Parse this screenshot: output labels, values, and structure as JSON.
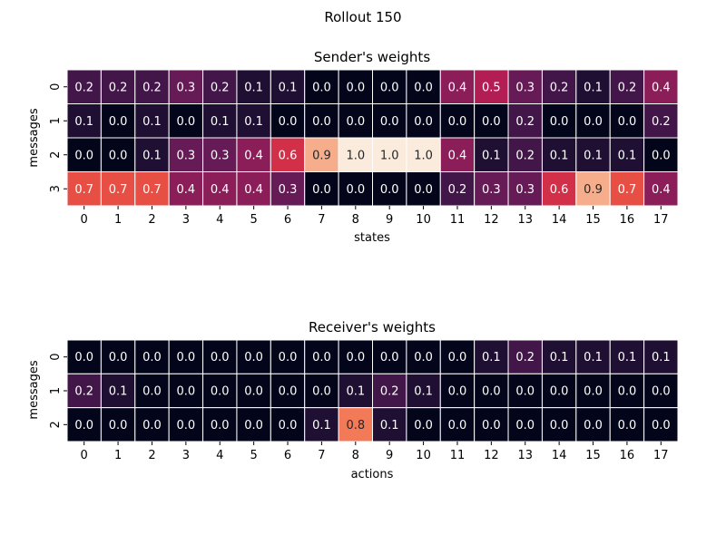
{
  "figure_title": "Rollout 150",
  "chart_data": [
    {
      "type": "heatmap",
      "title": "Sender's weights",
      "xlabel": "states",
      "ylabel": "messages",
      "x_categories": [
        "0",
        "1",
        "2",
        "3",
        "4",
        "5",
        "6",
        "7",
        "8",
        "9",
        "10",
        "11",
        "12",
        "13",
        "14",
        "15",
        "16",
        "17"
      ],
      "y_categories": [
        "0",
        "1",
        "2",
        "3"
      ],
      "value_range": [
        0,
        1
      ],
      "colormap": "rocket",
      "annotation_format": "0.0",
      "values": [
        [
          0.2,
          0.2,
          0.2,
          0.3,
          0.2,
          0.1,
          0.1,
          0.0,
          0.0,
          0.0,
          0.0,
          0.4,
          0.5,
          0.3,
          0.2,
          0.1,
          0.2,
          0.4
        ],
        [
          0.1,
          0.0,
          0.1,
          0.0,
          0.1,
          0.1,
          0.0,
          0.0,
          0.0,
          0.0,
          0.0,
          0.0,
          0.0,
          0.2,
          0.0,
          0.0,
          0.0,
          0.2
        ],
        [
          0.0,
          0.0,
          0.1,
          0.3,
          0.3,
          0.4,
          0.6,
          0.9,
          1.0,
          1.0,
          1.0,
          0.4,
          0.1,
          0.2,
          0.1,
          0.1,
          0.1,
          0.0
        ],
        [
          0.7,
          0.7,
          0.7,
          0.4,
          0.4,
          0.4,
          0.3,
          0.0,
          0.0,
          0.0,
          0.0,
          0.2,
          0.3,
          0.3,
          0.6,
          0.9,
          0.7,
          0.4
        ]
      ]
    },
    {
      "type": "heatmap",
      "title": "Receiver's weights",
      "xlabel": "actions",
      "ylabel": "messages",
      "x_categories": [
        "0",
        "1",
        "2",
        "3",
        "4",
        "5",
        "6",
        "7",
        "8",
        "9",
        "10",
        "11",
        "12",
        "13",
        "14",
        "15",
        "16",
        "17"
      ],
      "y_categories": [
        "0",
        "1",
        "2"
      ],
      "value_range": [
        0,
        1
      ],
      "colormap": "rocket",
      "annotation_format": "0.0",
      "values": [
        [
          0.0,
          0.0,
          0.0,
          0.0,
          0.0,
          0.0,
          0.0,
          0.0,
          0.0,
          0.0,
          0.0,
          0.0,
          0.1,
          0.2,
          0.1,
          0.1,
          0.1,
          0.1
        ],
        [
          0.2,
          0.1,
          0.0,
          0.0,
          0.0,
          0.0,
          0.0,
          0.0,
          0.1,
          0.2,
          0.1,
          0.0,
          0.0,
          0.0,
          0.0,
          0.0,
          0.0,
          0.0
        ],
        [
          0.0,
          0.0,
          0.0,
          0.0,
          0.0,
          0.0,
          0.0,
          0.1,
          0.8,
          0.1,
          0.0,
          0.0,
          0.0,
          0.0,
          0.0,
          0.0,
          0.0,
          0.0
        ]
      ]
    }
  ]
}
